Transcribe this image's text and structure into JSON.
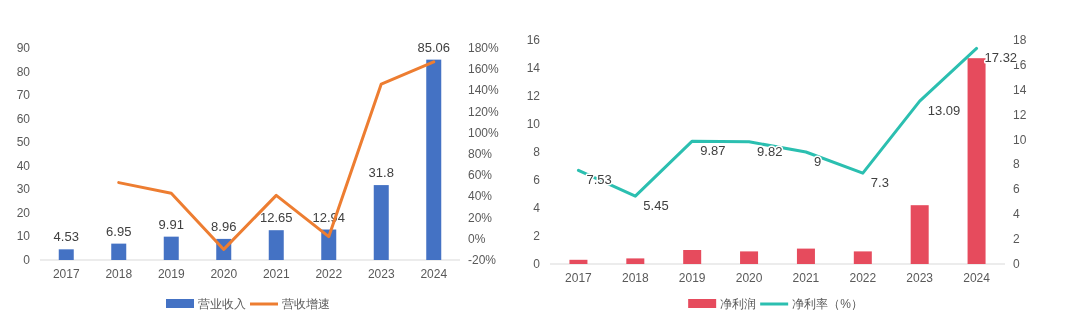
{
  "chart_data": [
    {
      "type": "bar",
      "categories": [
        "2017",
        "2018",
        "2019",
        "2020",
        "2021",
        "2022",
        "2023",
        "2024"
      ],
      "ylim": [
        0,
        90
      ],
      "yticks": [
        0,
        10,
        20,
        30,
        40,
        50,
        60,
        70,
        80,
        90
      ],
      "y2lim": [
        -20,
        180
      ],
      "y2ticks": [
        {
          "value": -20,
          "label": "-20%"
        },
        {
          "value": 0,
          "label": "0%"
        },
        {
          "value": 20,
          "label": "20%"
        },
        {
          "value": 40,
          "label": "40%"
        },
        {
          "value": 60,
          "label": "60%"
        },
        {
          "value": 80,
          "label": "80%"
        },
        {
          "value": 100,
          "label": "100%"
        },
        {
          "value": 120,
          "label": "120%"
        },
        {
          "value": 140,
          "label": "140%"
        },
        {
          "value": 160,
          "label": "160%"
        },
        {
          "value": 180,
          "label": "180%"
        }
      ],
      "legend": "bottom",
      "series": [
        {
          "name": "营业收入",
          "color": "#4472c4",
          "values": [
            4.53,
            6.95,
            9.91,
            8.96,
            12.65,
            12.94,
            31.8,
            85.06
          ],
          "value_labels": [
            "4.53",
            "6.95",
            "9.91",
            "8.96",
            "12.65",
            "12.94",
            "31.8",
            "85.06"
          ]
        },
        {
          "name": "营收增速",
          "type": "line",
          "axis": "y2",
          "color": "#ed7d31",
          "values": [
            null,
            53,
            43,
            -10,
            41,
            2,
            146,
            167
          ]
        }
      ]
    },
    {
      "type": "bar",
      "categories": [
        "2017",
        "2018",
        "2019",
        "2020",
        "2021",
        "2022",
        "2023",
        "2024"
      ],
      "ylim": [
        0,
        16
      ],
      "yticks": [
        0,
        2,
        4,
        6,
        8,
        10,
        12,
        14,
        16
      ],
      "y2lim": [
        0,
        18
      ],
      "y2ticks": [
        0,
        2,
        4,
        6,
        8,
        10,
        12,
        14,
        16,
        18
      ],
      "legend": "bottom",
      "series": [
        {
          "name": "净利润",
          "color": "#e64b5d",
          "values": [
            0.3,
            0.4,
            1.0,
            0.9,
            1.1,
            0.9,
            4.2,
            14.7
          ]
        },
        {
          "name": "净利率（%）",
          "type": "line",
          "axis": "y2",
          "color": "#2bbfb0",
          "values": [
            7.53,
            5.45,
            9.87,
            9.82,
            9,
            7.3,
            13.09,
            17.32
          ],
          "value_labels": [
            "7.53",
            "5.45",
            "9.87",
            "9.82",
            "9",
            "7.3",
            "13.09",
            "17.32"
          ]
        }
      ]
    }
  ]
}
